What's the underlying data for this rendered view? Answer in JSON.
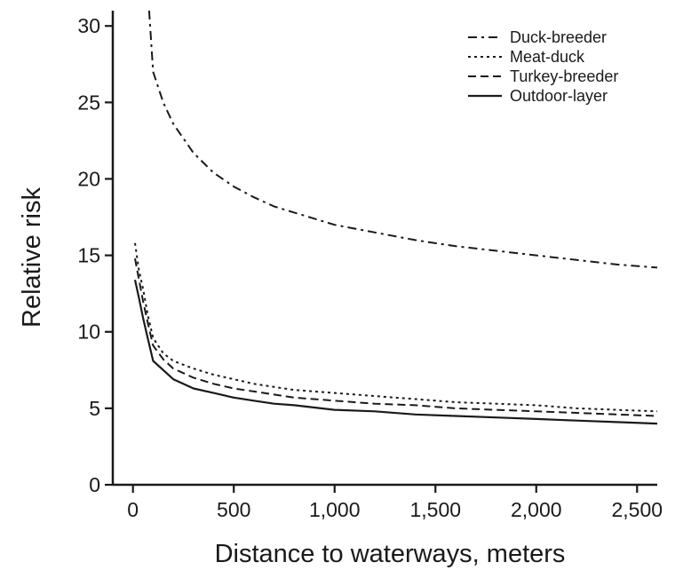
{
  "chart_data": {
    "type": "line",
    "title": "",
    "xlabel": "Distance to waterways, meters",
    "ylabel": "Relative risk",
    "xlim": [
      -100,
      2600
    ],
    "ylim": [
      0,
      31
    ],
    "xticks": [
      0,
      500,
      1000,
      1500,
      2000,
      2500
    ],
    "xtick_labels": [
      "0",
      "500",
      "1,000",
      "1,500",
      "2,000",
      "2,500"
    ],
    "yticks": [
      0,
      5,
      10,
      15,
      20,
      25,
      30
    ],
    "ytick_labels": [
      "0",
      "5",
      "10",
      "15",
      "20",
      "25",
      "30"
    ],
    "grid": false,
    "legend_position": "top-right",
    "line_color": "#1a1a1a",
    "series": [
      {
        "name": "Duck-breeder",
        "dash": "dash-dot",
        "x": [
          80,
          100,
          150,
          200,
          300,
          400,
          500,
          600,
          700,
          800,
          900,
          1000,
          1200,
          1400,
          1600,
          1800,
          2000,
          2200,
          2400,
          2600
        ],
        "y": [
          31,
          27,
          25,
          23.6,
          21.7,
          20.4,
          19.5,
          18.8,
          18.2,
          17.8,
          17.4,
          17.0,
          16.5,
          16.0,
          15.6,
          15.3,
          15.0,
          14.7,
          14.4,
          14.2
        ]
      },
      {
        "name": "Meat-duck",
        "dash": "dotted",
        "x": [
          10,
          30,
          50,
          75,
          100,
          150,
          200,
          300,
          400,
          500,
          600,
          700,
          800,
          1000,
          1200,
          1400,
          1600,
          1800,
          2000,
          2200,
          2400,
          2600
        ],
        "y": [
          15.8,
          14.0,
          12.8,
          11.0,
          9.6,
          8.6,
          8.1,
          7.6,
          7.2,
          6.9,
          6.6,
          6.4,
          6.2,
          6.0,
          5.8,
          5.6,
          5.4,
          5.3,
          5.2,
          5.0,
          4.9,
          4.8
        ]
      },
      {
        "name": "Turkey-breeder",
        "dash": "dashed",
        "x": [
          10,
          30,
          50,
          75,
          100,
          150,
          200,
          300,
          400,
          500,
          600,
          700,
          800,
          1000,
          1200,
          1400,
          1600,
          1800,
          2000,
          2200,
          2400,
          2600
        ],
        "y": [
          14.8,
          13.4,
          12.0,
          10.5,
          9.1,
          8.2,
          7.6,
          7.0,
          6.6,
          6.3,
          6.1,
          5.9,
          5.7,
          5.5,
          5.3,
          5.2,
          5.0,
          4.9,
          4.8,
          4.7,
          4.6,
          4.5
        ]
      },
      {
        "name": "Outdoor-layer",
        "dash": "solid",
        "x": [
          10,
          30,
          50,
          75,
          100,
          150,
          200,
          300,
          400,
          500,
          600,
          700,
          800,
          1000,
          1200,
          1400,
          1600,
          1800,
          2000,
          2200,
          2400,
          2600
        ],
        "y": [
          13.4,
          12.2,
          10.9,
          9.5,
          8.1,
          7.5,
          6.9,
          6.3,
          6.0,
          5.7,
          5.5,
          5.3,
          5.2,
          4.9,
          4.8,
          4.6,
          4.5,
          4.4,
          4.3,
          4.2,
          4.1,
          4.0
        ]
      }
    ]
  }
}
